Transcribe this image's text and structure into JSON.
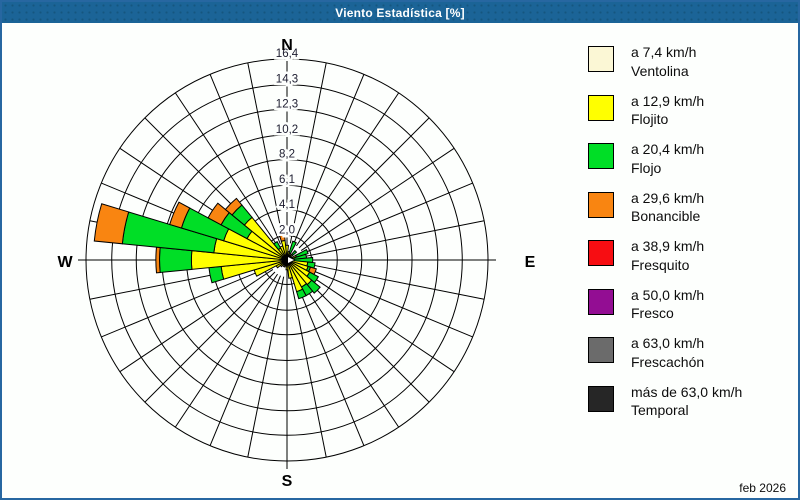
{
  "window": {
    "title": "Viento Estadística [%]"
  },
  "footer": {
    "date": "feb 2026"
  },
  "colors": {
    "titlebar": "#1B6497",
    "frame_border": "#2767A1",
    "background": "#FDFFFD",
    "grid": "#000000"
  },
  "legend": {
    "items": [
      {
        "speed": "a 7,4 km/h",
        "name": "Ventolina",
        "color": "#FBF7D5"
      },
      {
        "speed": "a 12,9 km/h",
        "name": "Flojito",
        "color": "#FFFF00"
      },
      {
        "speed": "a 20,4 km/h",
        "name": "Flojo",
        "color": "#00DE26"
      },
      {
        "speed": "a 29,6 km/h",
        "name": "Bonancible",
        "color": "#F98511"
      },
      {
        "speed": "a 38,9 km/h",
        "name": "Fresquito",
        "color": "#F70D12"
      },
      {
        "speed": "a 50,0 km/h",
        "name": "Fresco",
        "color": "#930D93"
      },
      {
        "speed": "a 63,0 km/h",
        "name": "Frescachón",
        "color": "#6B6B6B"
      },
      {
        "speed": "más de 63,0 km/h",
        "name": "Temporal",
        "color": "#262626"
      }
    ]
  },
  "chart_data": {
    "type": "wind_rose",
    "title": "Viento Estadística [%]",
    "value_units": "%",
    "sector_count": 32,
    "sector_width_deg": 11.25,
    "axis_max": 16.4,
    "ring_values": [
      2.0,
      4.1,
      6.1,
      8.2,
      10.2,
      12.3,
      14.3,
      16.4
    ],
    "ring_labels": [
      "2,0",
      "4,1",
      "6,1",
      "8,2",
      "10,2",
      "12,3",
      "14,3",
      "16,4"
    ],
    "compass_labels": {
      "n": "N",
      "e": "E",
      "s": "S",
      "w": "W"
    },
    "series": [
      {
        "key": "ventolina",
        "label": "a 7,4 km/h Ventolina",
        "color": "#FBF7D5"
      },
      {
        "key": "flojito",
        "label": "a 12,9 km/h Flojito",
        "color": "#FFFF00"
      },
      {
        "key": "flojo",
        "label": "a 20,4 km/h Flojo",
        "color": "#00DE26"
      },
      {
        "key": "bonancible",
        "label": "a 29,6 km/h Bonancible",
        "color": "#F98511"
      },
      {
        "key": "fresquito",
        "label": "a 38,9 km/h Fresquito",
        "color": "#F70D12"
      },
      {
        "key": "fresco",
        "label": "a 50,0 km/h Fresco",
        "color": "#930D93"
      },
      {
        "key": "frescachon",
        "label": "a 63,0 km/h Frescachón",
        "color": "#6B6B6B"
      },
      {
        "key": "temporal",
        "label": "más de 63,0 km/h Temporal",
        "color": "#262626"
      }
    ],
    "petals": [
      {
        "dir": "N",
        "deg": 0.0,
        "values": [
          0.1,
          1.1,
          0.0,
          0.0,
          0,
          0,
          0,
          0
        ]
      },
      {
        "dir": "NbE",
        "deg": 11.25,
        "values": [
          0.1,
          0.6,
          0.0,
          0.0,
          0,
          0,
          0,
          0
        ]
      },
      {
        "dir": "NNE",
        "deg": 22.5,
        "values": [
          0.1,
          0.5,
          1.0,
          0.0,
          0,
          0,
          0,
          0
        ]
      },
      {
        "dir": "NEbN",
        "deg": 33.75,
        "values": [
          0.1,
          0.4,
          0.0,
          0.0,
          0,
          0,
          0,
          0
        ]
      },
      {
        "dir": "NE",
        "deg": 45.0,
        "values": [
          0.1,
          0.5,
          0.4,
          0.0,
          0,
          0,
          0,
          0
        ]
      },
      {
        "dir": "NEbE",
        "deg": 56.25,
        "values": [
          0.1,
          0.3,
          0.0,
          0.0,
          0,
          0,
          0,
          0
        ]
      },
      {
        "dir": "ENE",
        "deg": 67.5,
        "values": [
          0.1,
          0.7,
          1.0,
          0.0,
          0,
          0,
          0,
          0
        ]
      },
      {
        "dir": "EbN",
        "deg": 78.75,
        "values": [
          0.1,
          0.4,
          1.1,
          0.0,
          0,
          0,
          0,
          0
        ]
      },
      {
        "dir": "E",
        "deg": 90.0,
        "values": [
          0.1,
          0.5,
          1.5,
          0.0,
          0,
          0,
          0,
          0
        ]
      },
      {
        "dir": "EbS",
        "deg": 101.25,
        "values": [
          0.1,
          1.6,
          0.6,
          0.0,
          0,
          0,
          0,
          0
        ]
      },
      {
        "dir": "ESE",
        "deg": 112.5,
        "values": [
          0.1,
          1.7,
          0.2,
          0.5,
          0,
          0,
          0,
          0
        ]
      },
      {
        "dir": "SEbE",
        "deg": 123.75,
        "values": [
          0.1,
          2.0,
          0.8,
          0.0,
          0,
          0,
          0,
          0
        ]
      },
      {
        "dir": "SE",
        "deg": 135.0,
        "values": [
          0.1,
          2.5,
          0.9,
          0.0,
          0,
          0,
          0,
          0
        ]
      },
      {
        "dir": "SEbS",
        "deg": 146.25,
        "values": [
          0.1,
          2.4,
          0.8,
          0.0,
          0,
          0,
          0,
          0
        ]
      },
      {
        "dir": "SSE",
        "deg": 157.5,
        "values": [
          0.1,
          2.6,
          0.6,
          0.0,
          0,
          0,
          0,
          0
        ]
      },
      {
        "dir": "SbE",
        "deg": 168.75,
        "values": [
          0.1,
          1.4,
          0.0,
          0.0,
          0,
          0,
          0,
          0
        ]
      },
      {
        "dir": "S",
        "deg": 180.0,
        "values": [
          0.1,
          0.7,
          0.0,
          0.0,
          0,
          0,
          0,
          0
        ]
      },
      {
        "dir": "SbW",
        "deg": 191.25,
        "values": [
          0.1,
          0.4,
          0.0,
          0.0,
          0,
          0,
          0,
          0
        ]
      },
      {
        "dir": "SSW",
        "deg": 202.5,
        "values": [
          0.1,
          0.5,
          0.0,
          0.0,
          0,
          0,
          0,
          0
        ]
      },
      {
        "dir": "SWbS",
        "deg": 213.75,
        "values": [
          0.1,
          0.4,
          0.0,
          0.0,
          0,
          0,
          0,
          0
        ]
      },
      {
        "dir": "SW",
        "deg": 225.0,
        "values": [
          0.1,
          0.6,
          0.0,
          0.0,
          0,
          0,
          0,
          0
        ]
      },
      {
        "dir": "SWbW",
        "deg": 236.25,
        "values": [
          0.1,
          0.9,
          0.0,
          0.0,
          0,
          0,
          0,
          0
        ]
      },
      {
        "dir": "WSW",
        "deg": 247.5,
        "values": [
          0.2,
          2.6,
          0.0,
          0.0,
          0,
          0,
          0,
          0
        ]
      },
      {
        "dir": "WbS",
        "deg": 258.75,
        "values": [
          0.2,
          5.2,
          1.0,
          0.0,
          0,
          0,
          0,
          0
        ]
      },
      {
        "dir": "W",
        "deg": 270.0,
        "values": [
          0.3,
          7.5,
          2.6,
          0.3,
          0,
          0,
          0,
          0
        ]
      },
      {
        "dir": "WbN",
        "deg": 281.25,
        "values": [
          0.3,
          5.7,
          7.5,
          2.3,
          0,
          0,
          0,
          0
        ]
      },
      {
        "dir": "WNW",
        "deg": 292.5,
        "values": [
          0.3,
          5.1,
          3.6,
          1.0,
          0,
          0,
          0,
          0
        ]
      },
      {
        "dir": "NWbW",
        "deg": 303.75,
        "values": [
          0.2,
          3.5,
          2.4,
          1.2,
          0,
          0,
          0,
          0
        ]
      },
      {
        "dir": "NW",
        "deg": 315.0,
        "values": [
          0.2,
          4.3,
          1.3,
          0.7,
          0,
          0,
          0,
          0
        ]
      },
      {
        "dir": "NWbN",
        "deg": 326.25,
        "values": [
          0.1,
          1.0,
          0.6,
          0.0,
          0,
          0,
          0,
          0
        ]
      },
      {
        "dir": "NNW",
        "deg": 337.5,
        "values": [
          0.1,
          1.1,
          0.0,
          0.0,
          0,
          0,
          0,
          0
        ]
      },
      {
        "dir": "NbW",
        "deg": 348.75,
        "values": [
          0.1,
          1.5,
          0.0,
          0.5,
          0,
          0,
          0,
          0
        ]
      }
    ]
  }
}
